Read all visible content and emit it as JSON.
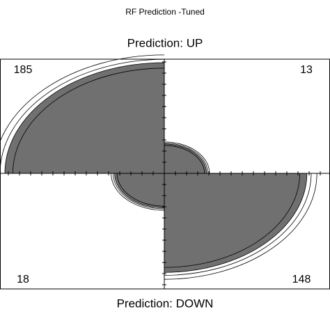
{
  "chart_data": {
    "type": "fourfold",
    "title": "RF Prediction -Tuned",
    "top_label": "Prediction: UP",
    "bottom_label": "Prediction: DOWN",
    "values": [
      185,
      13,
      18,
      148
    ],
    "color": "#707070"
  }
}
